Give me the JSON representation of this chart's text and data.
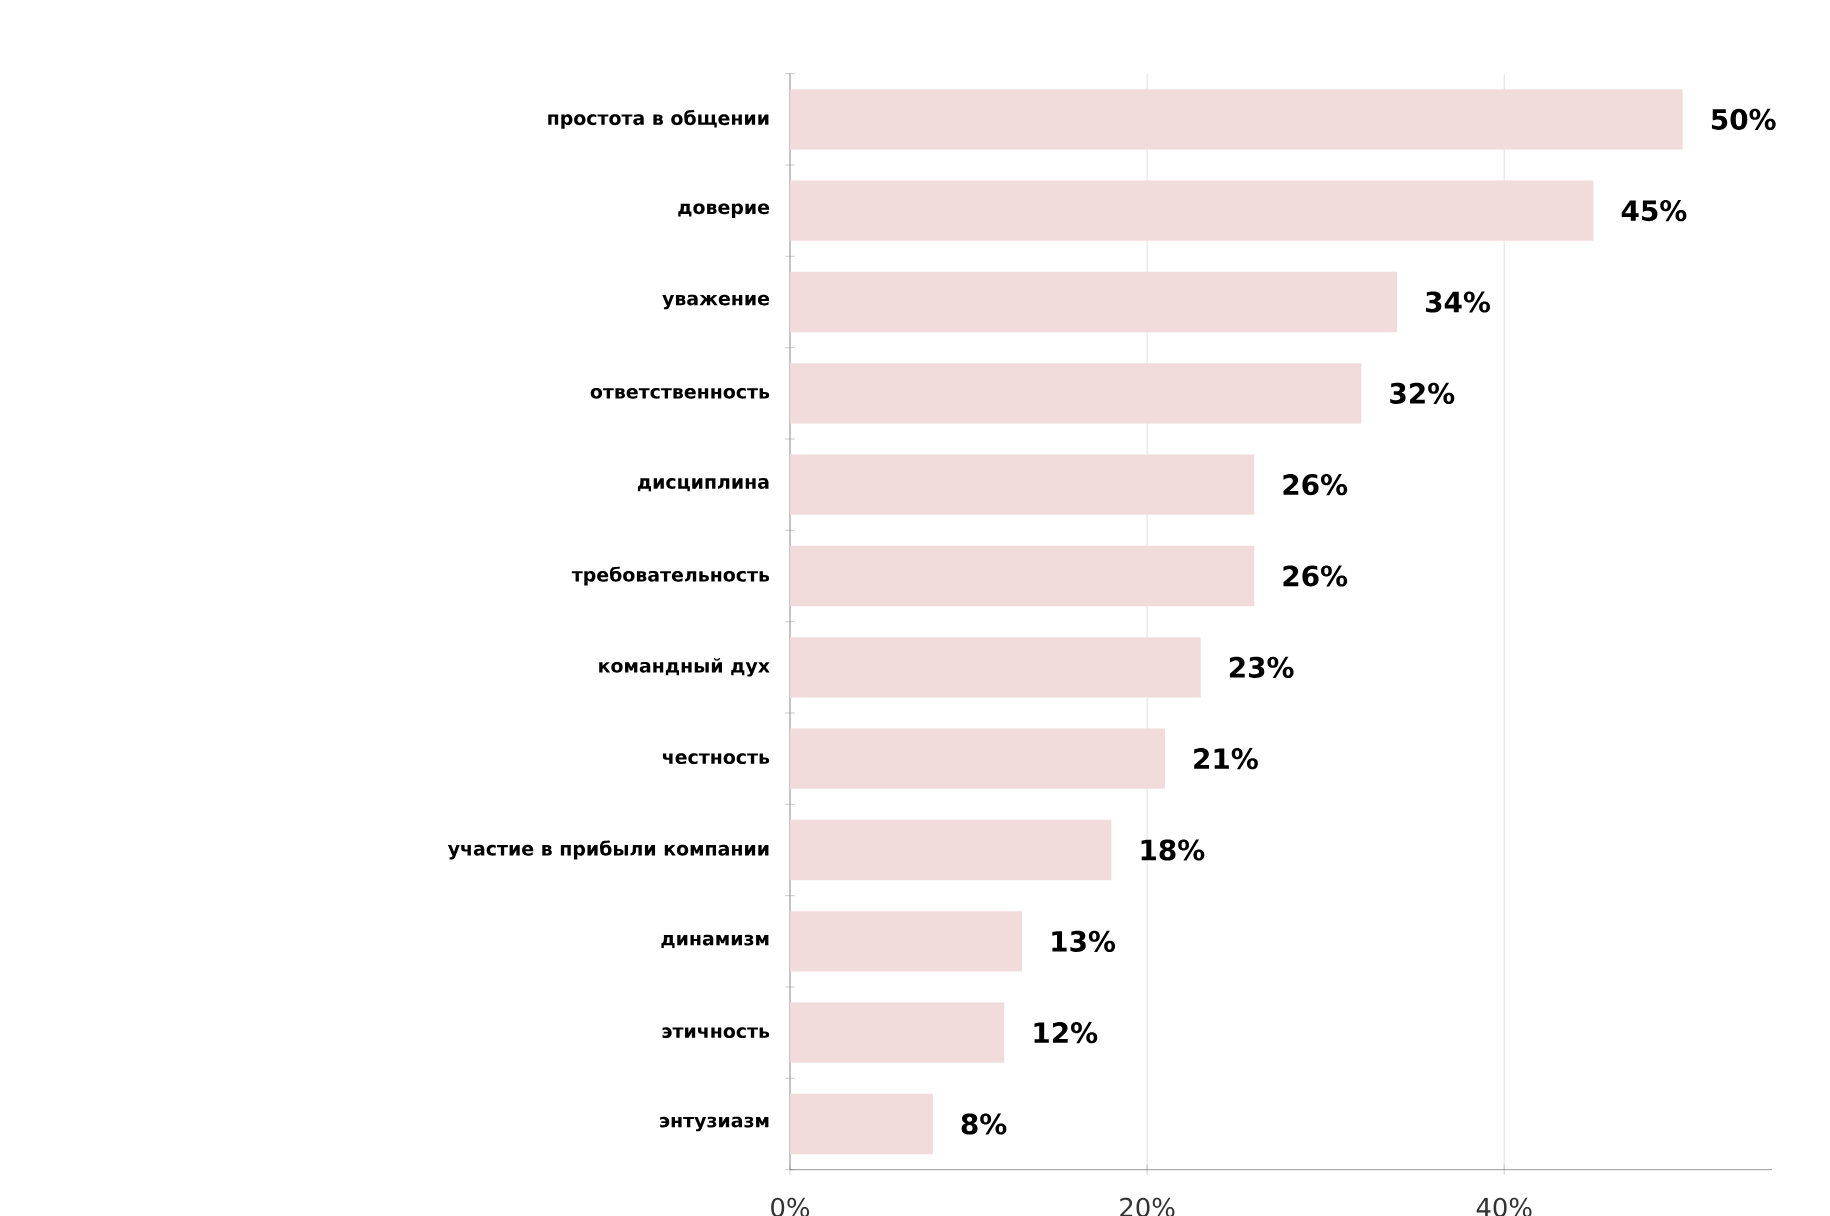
{
  "chart_data": {
    "type": "bar",
    "orientation": "horizontal",
    "categories": [
      "простота в общении",
      "доверие",
      "уважение",
      "ответственность",
      "дисциплина",
      "требовательность",
      "командный дух",
      "честность",
      "участие в прибыли компании",
      "динамизм",
      "этичность",
      "энтузиазм"
    ],
    "values": [
      50,
      45,
      34,
      32,
      26,
      26,
      23,
      21,
      18,
      13,
      12,
      8
    ],
    "value_labels": [
      "50%",
      "45%",
      "34%",
      "32%",
      "26%",
      "26%",
      "23%",
      "21%",
      "18%",
      "13%",
      "12%",
      "8%"
    ],
    "color": "#f2dcdb",
    "xlim": [
      0,
      55
    ],
    "xticks": [
      {
        "value": 0,
        "label": "0%"
      },
      {
        "value": 20,
        "label": "20%"
      },
      {
        "value": 40,
        "label": "40%"
      }
    ],
    "grid": "x"
  }
}
